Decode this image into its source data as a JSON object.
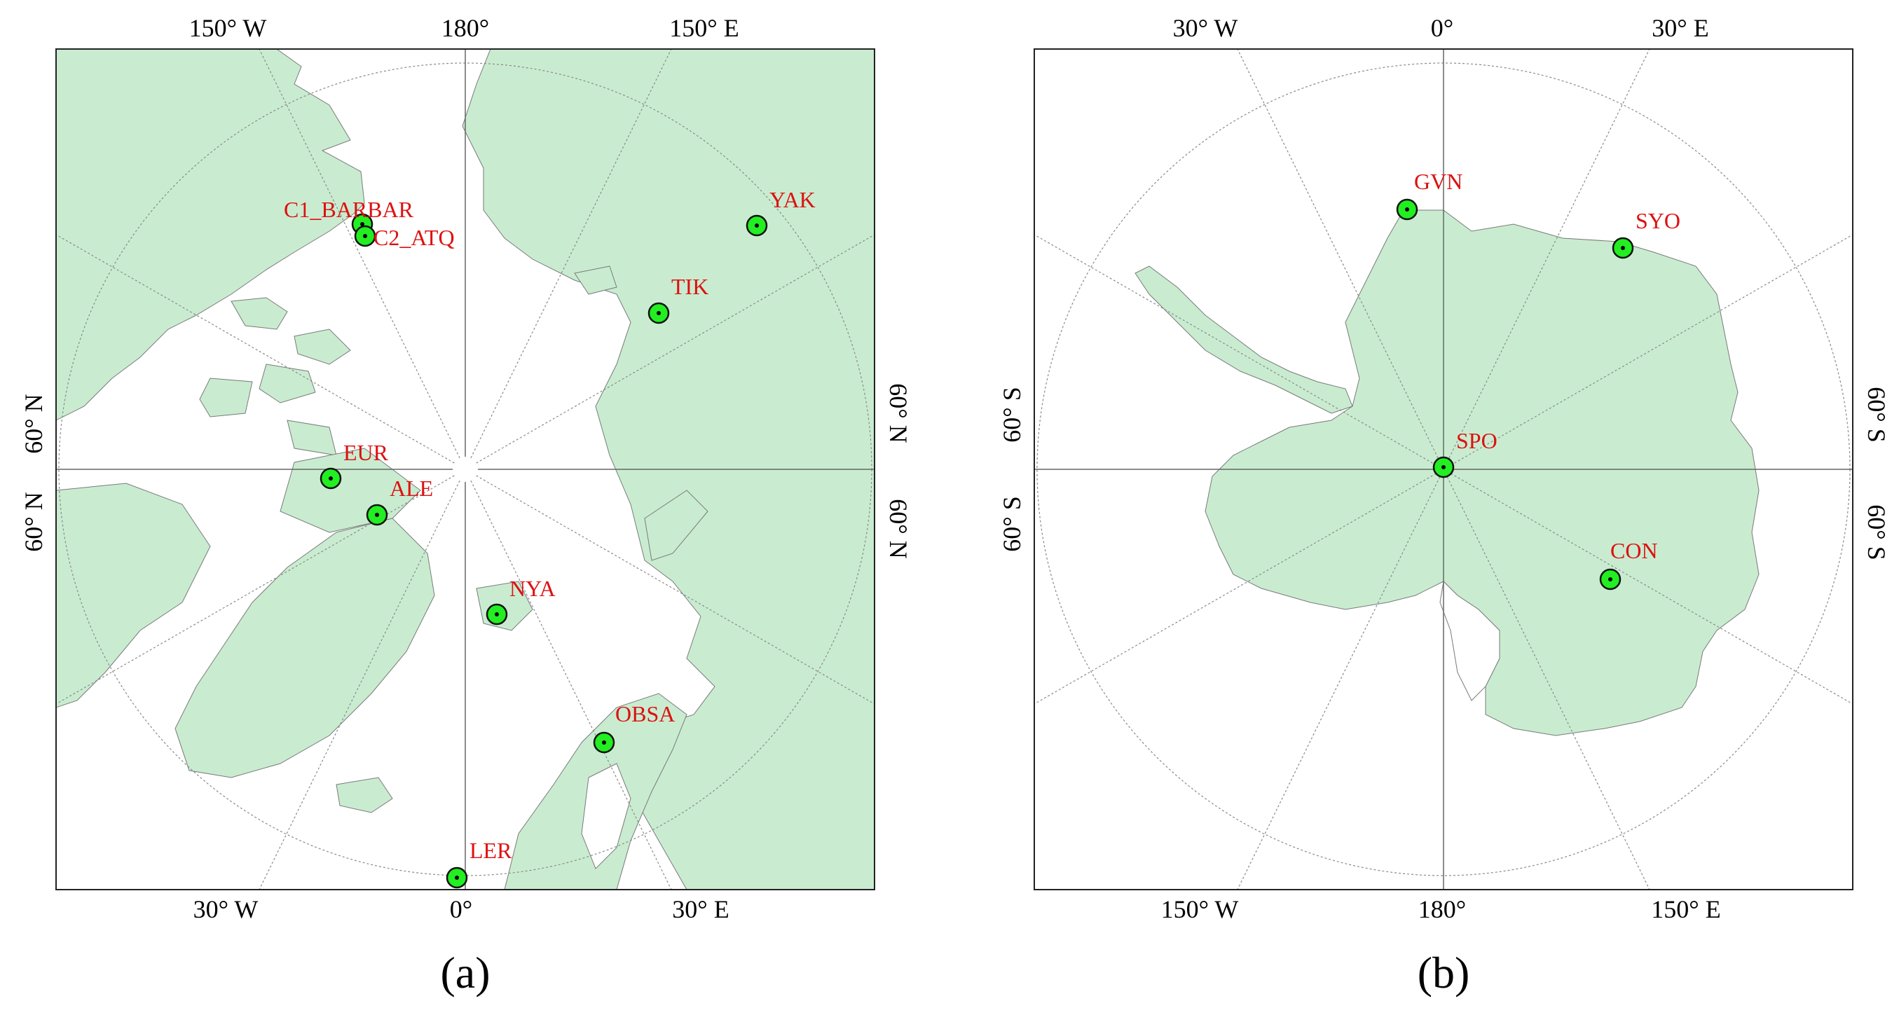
{
  "figure": {
    "panels": [
      {
        "id": "a",
        "caption": "(a)",
        "graticule_labels": {
          "top": [
            "150° W",
            "180°",
            "150° E"
          ],
          "bottom": [
            "30° W",
            "0°",
            "30° E"
          ],
          "left": [
            "60° N",
            "60° N"
          ],
          "right": [
            "60° N",
            "60° N"
          ]
        },
        "stations": [
          {
            "name": "C1_BARBAR"
          },
          {
            "name": "C2_ATQ"
          },
          {
            "name": "YAK"
          },
          {
            "name": "TIK"
          },
          {
            "name": "EUR"
          },
          {
            "name": "ALE"
          },
          {
            "name": "NYA"
          },
          {
            "name": "OBSA"
          },
          {
            "name": "LER"
          }
        ]
      },
      {
        "id": "b",
        "caption": "(b)",
        "graticule_labels": {
          "top": [
            "30° W",
            "0°",
            "30° E"
          ],
          "bottom": [
            "150° W",
            "180°",
            "150° E"
          ],
          "left": [
            "60° S",
            "60° S"
          ],
          "right": [
            "60° S",
            "60° S"
          ]
        },
        "stations": [
          {
            "name": "GVN"
          },
          {
            "name": "SYO"
          },
          {
            "name": "SPO"
          },
          {
            "name": "CON"
          }
        ]
      }
    ],
    "colors": {
      "land": "#c9ecd0",
      "ocean": "#ffffff",
      "station_fill": "#22ee22",
      "label": "#dd1111"
    }
  }
}
